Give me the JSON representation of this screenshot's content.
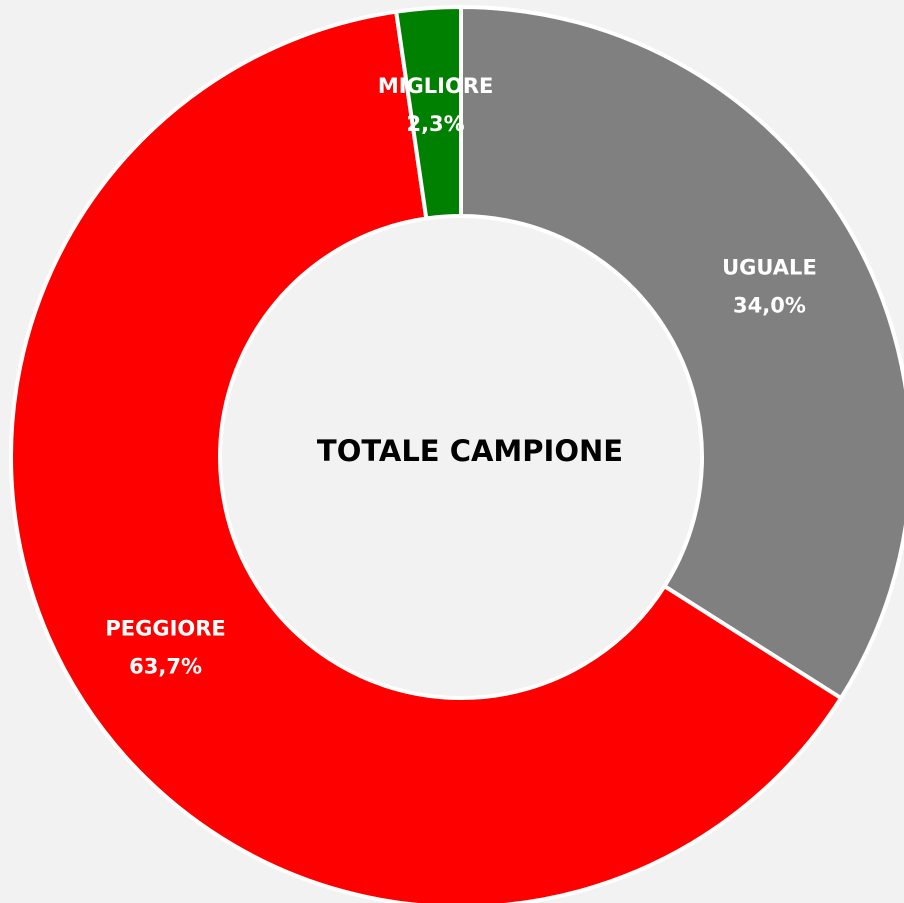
{
  "chart_data": {
    "type": "donut",
    "title": "TOTALE CAMPIONE",
    "categories": [
      "UGUALE",
      "PEGGIORE",
      "MIGLIORE"
    ],
    "values": [
      34.0,
      63.7,
      2.3
    ],
    "value_labels": [
      "34,0%",
      "63,7%",
      "2,3%"
    ],
    "colors": [
      "#808080",
      "#ff0000",
      "#008000"
    ]
  }
}
